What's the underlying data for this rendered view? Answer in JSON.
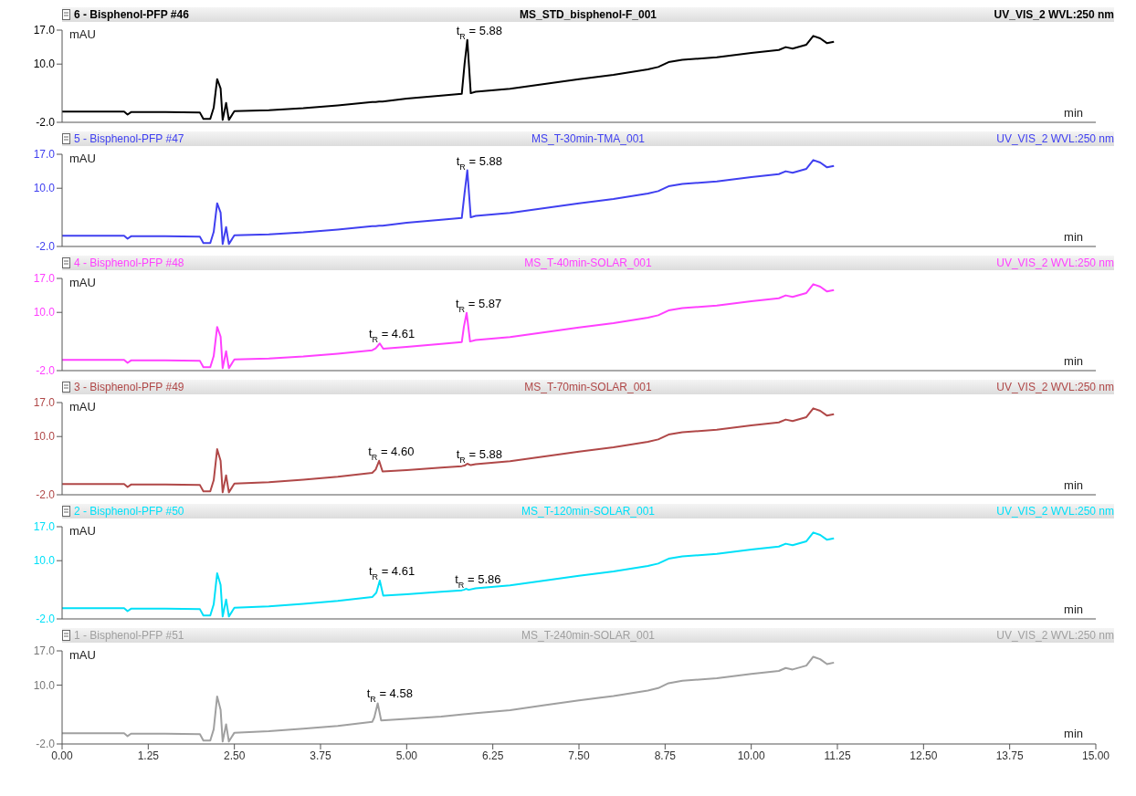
{
  "chart_data": [
    {
      "type": "line",
      "title": "6 - Bisphenol-PFP #46",
      "subtitle": "MS_STD_bisphenol-F_001",
      "annotations": [
        "UV_VIS_2 WVL:250 nm",
        {
          "text": "t$_{R}$ = 5.88",
          "x": 5.88,
          "y": 15.0
        }
      ],
      "xlabel": "min",
      "ylabel": "mAU",
      "xlim": [
        0,
        15
      ],
      "ylim": [
        -2,
        17
      ],
      "yticks": [
        {
          "value": -2,
          "label": "-2.0"
        },
        {
          "value": 10,
          "label": "10.0"
        },
        {
          "value": 17,
          "label": "17.0"
        }
      ],
      "tick_labels": "y",
      "x": [
        0,
        0.9,
        0.95,
        1.0,
        1.5,
        2.0,
        2.05,
        2.15,
        2.2,
        2.25,
        2.3,
        2.33,
        2.38,
        2.42,
        2.5,
        3.0,
        3.5,
        4.0,
        4.5,
        4.55,
        4.6,
        4.65,
        5.0,
        5.5,
        5.8,
        5.84,
        5.88,
        5.93,
        6.0,
        6.5,
        7.0,
        7.5,
        8.0,
        8.5,
        8.65,
        8.8,
        9.0,
        9.5,
        10.0,
        10.4,
        10.5,
        10.6,
        10.8,
        10.9,
        11.0,
        11.1,
        11.2
      ],
      "series": [
        {
          "color": "#000000",
          "values": [
            0.2,
            0.2,
            -0.4,
            0.1,
            0.1,
            0.0,
            -1.3,
            -1.3,
            1.0,
            6.9,
            5.0,
            -1.5,
            2.0,
            -1.5,
            0.3,
            0.5,
            0.9,
            1.5,
            2.2,
            2.2,
            2.3,
            2.3,
            2.9,
            3.5,
            3.9,
            10.0,
            15.0,
            4.0,
            4.3,
            4.9,
            5.9,
            6.9,
            7.8,
            8.9,
            9.4,
            10.4,
            10.9,
            11.4,
            12.3,
            12.9,
            13.5,
            13.2,
            14.0,
            15.8,
            15.3,
            14.3,
            14.6
          ]
        }
      ]
    },
    {
      "type": "line",
      "title": "5 - Bisphenol-PFP #47",
      "subtitle": "MS_T-30min-TMA_001",
      "annotations": [
        "UV_VIS_2 WVL:250 nm",
        {
          "text": "t$_{R}$ = 5.88",
          "x": 5.88,
          "y": 13.7
        }
      ],
      "xlabel": "min",
      "ylabel": "mAU",
      "xlim": [
        0,
        15
      ],
      "ylim": [
        -2,
        17
      ],
      "yticks": [
        {
          "value": -2,
          "label": "-2.0"
        },
        {
          "value": 10,
          "label": "10.0"
        },
        {
          "value": 17,
          "label": "17.0"
        }
      ],
      "tick_labels": "y",
      "x": [
        0,
        0.9,
        0.95,
        1.0,
        1.5,
        2.0,
        2.05,
        2.15,
        2.2,
        2.25,
        2.3,
        2.33,
        2.38,
        2.42,
        2.5,
        3.0,
        3.5,
        4.0,
        4.5,
        4.55,
        4.6,
        4.65,
        5.0,
        5.5,
        5.8,
        5.84,
        5.88,
        5.93,
        6.0,
        6.5,
        7.0,
        7.5,
        8.0,
        8.5,
        8.65,
        8.8,
        9.0,
        9.5,
        10.0,
        10.4,
        10.5,
        10.6,
        10.8,
        10.9,
        11.0,
        11.1,
        11.2
      ],
      "series": [
        {
          "color": "#4040f0",
          "values": [
            0.2,
            0.2,
            -0.4,
            0.1,
            0.1,
            0.0,
            -1.3,
            -1.3,
            1.0,
            6.9,
            5.0,
            -1.5,
            2.0,
            -1.5,
            0.3,
            0.5,
            0.9,
            1.5,
            2.2,
            2.2,
            2.3,
            2.3,
            2.9,
            3.5,
            3.9,
            9.0,
            13.7,
            4.0,
            4.3,
            4.9,
            5.9,
            6.9,
            7.8,
            8.9,
            9.4,
            10.4,
            10.9,
            11.4,
            12.3,
            12.9,
            13.5,
            13.2,
            14.0,
            15.8,
            15.3,
            14.3,
            14.6
          ]
        }
      ]
    },
    {
      "type": "line",
      "title": "4 - Bisphenol-PFP #48",
      "subtitle": "MS_T-40min-SOLAR_001",
      "annotations": [
        "UV_VIS_2 WVL:250 nm",
        {
          "text": "t$_{R}$ = 4.61",
          "x": 4.61,
          "y": 3.6
        },
        {
          "text": "t$_{R}$ = 5.87",
          "x": 5.87,
          "y": 9.9
        }
      ],
      "xlabel": "min",
      "ylabel": "mAU",
      "xlim": [
        0,
        15
      ],
      "ylim": [
        -2,
        17
      ],
      "yticks": [
        {
          "value": -2,
          "label": "-2.0"
        },
        {
          "value": 10,
          "label": "10.0"
        },
        {
          "value": 17,
          "label": "17.0"
        }
      ],
      "tick_labels": "y",
      "x": [
        0,
        0.9,
        0.95,
        1.0,
        1.5,
        2.0,
        2.05,
        2.15,
        2.2,
        2.25,
        2.3,
        2.33,
        2.38,
        2.42,
        2.5,
        3.0,
        3.5,
        4.0,
        4.5,
        4.55,
        4.61,
        4.66,
        5.0,
        5.5,
        5.8,
        5.83,
        5.87,
        5.92,
        6.0,
        6.5,
        7.0,
        7.5,
        8.0,
        8.5,
        8.65,
        8.8,
        9.0,
        9.5,
        10.0,
        10.4,
        10.5,
        10.6,
        10.8,
        10.9,
        11.0,
        11.1,
        11.2
      ],
      "series": [
        {
          "color": "#ff40ff",
          "values": [
            0.2,
            0.2,
            -0.4,
            0.1,
            0.1,
            0.0,
            -1.3,
            -1.3,
            1.0,
            7.0,
            5.0,
            -1.5,
            2.0,
            -1.5,
            0.3,
            0.5,
            0.9,
            1.5,
            2.2,
            2.6,
            3.6,
            2.5,
            2.9,
            3.5,
            3.9,
            7.0,
            9.9,
            4.0,
            4.3,
            4.9,
            5.9,
            6.9,
            7.8,
            8.9,
            9.4,
            10.4,
            10.9,
            11.4,
            12.3,
            12.9,
            13.5,
            13.2,
            14.0,
            15.8,
            15.3,
            14.3,
            14.6
          ]
        }
      ]
    },
    {
      "type": "line",
      "title": "3 - Bisphenol-PFP #49",
      "subtitle": "MS_T-70min-SOLAR_001",
      "annotations": [
        "UV_VIS_2 WVL:250 nm",
        {
          "text": "t$_{R}$ = 4.60",
          "x": 4.6,
          "y": 5.0
        },
        {
          "text": "t$_{R}$ = 5.88",
          "x": 5.88,
          "y": 4.4
        }
      ],
      "xlabel": "min",
      "ylabel": "mAU",
      "xlim": [
        0,
        15
      ],
      "ylim": [
        -2,
        17
      ],
      "yticks": [
        {
          "value": -2,
          "label": "-2.0"
        },
        {
          "value": 10,
          "label": "10.0"
        },
        {
          "value": 17,
          "label": "17.0"
        }
      ],
      "tick_labels": "y",
      "x": [
        0,
        0.9,
        0.95,
        1.0,
        1.5,
        2.0,
        2.05,
        2.15,
        2.2,
        2.25,
        2.3,
        2.33,
        2.38,
        2.42,
        2.5,
        3.0,
        3.5,
        4.0,
        4.5,
        4.55,
        4.6,
        4.65,
        5.0,
        5.5,
        5.8,
        5.84,
        5.88,
        5.93,
        6.0,
        6.5,
        7.0,
        7.5,
        8.0,
        8.5,
        8.65,
        8.8,
        9.0,
        9.5,
        10.0,
        10.4,
        10.5,
        10.6,
        10.8,
        10.9,
        11.0,
        11.1,
        11.2
      ],
      "series": [
        {
          "color": "#b04848",
          "values": [
            0.2,
            0.2,
            -0.4,
            0.1,
            0.1,
            0.0,
            -1.3,
            -1.3,
            1.0,
            7.4,
            5.0,
            -1.5,
            2.0,
            -1.5,
            0.3,
            0.6,
            1.1,
            1.7,
            2.5,
            3.2,
            5.0,
            2.8,
            3.1,
            3.6,
            3.9,
            4.0,
            4.4,
            4.1,
            4.3,
            4.9,
            5.9,
            6.9,
            7.8,
            8.9,
            9.4,
            10.4,
            10.9,
            11.4,
            12.3,
            12.9,
            13.5,
            13.2,
            14.0,
            15.8,
            15.3,
            14.3,
            14.6
          ]
        }
      ]
    },
    {
      "type": "line",
      "title": "2 - Bisphenol-PFP #50",
      "subtitle": "MS_T-120min-SOLAR_001",
      "annotations": [
        "UV_VIS_2 WVL:250 nm",
        {
          "text": "t$_{R}$ = 4.61",
          "x": 4.61,
          "y": 5.9
        },
        {
          "text": "t$_{R}$ = 5.86",
          "x": 5.86,
          "y": 4.2
        }
      ],
      "xlabel": "min",
      "ylabel": "mAU",
      "xlim": [
        0,
        15
      ],
      "ylim": [
        -2,
        17
      ],
      "yticks": [
        {
          "value": -2,
          "label": "-2.0"
        },
        {
          "value": 10,
          "label": "10.0"
        },
        {
          "value": 17,
          "label": "17.0"
        }
      ],
      "tick_labels": "y",
      "x": [
        0,
        0.9,
        0.95,
        1.0,
        1.5,
        2.0,
        2.05,
        2.15,
        2.2,
        2.25,
        2.3,
        2.33,
        2.38,
        2.42,
        2.5,
        3.0,
        3.5,
        4.0,
        4.5,
        4.56,
        4.61,
        4.66,
        5.0,
        5.5,
        5.8,
        5.83,
        5.86,
        5.9,
        6.0,
        6.5,
        7.0,
        7.5,
        8.0,
        8.5,
        8.65,
        8.8,
        9.0,
        9.5,
        10.0,
        10.4,
        10.5,
        10.6,
        10.8,
        10.9,
        11.0,
        11.1,
        11.2
      ],
      "series": [
        {
          "color": "#00e0f8",
          "values": [
            0.2,
            0.2,
            -0.4,
            0.1,
            0.1,
            0.0,
            -1.3,
            -1.3,
            1.0,
            7.4,
            5.0,
            -1.5,
            2.0,
            -1.5,
            0.3,
            0.6,
            1.1,
            1.7,
            2.5,
            3.4,
            5.9,
            2.8,
            3.1,
            3.6,
            3.9,
            4.0,
            4.2,
            4.0,
            4.3,
            4.9,
            5.9,
            6.9,
            7.8,
            8.9,
            9.4,
            10.4,
            10.9,
            11.4,
            12.3,
            12.9,
            13.5,
            13.2,
            14.0,
            15.8,
            15.3,
            14.3,
            14.6
          ]
        }
      ]
    },
    {
      "type": "line",
      "title": "1 - Bisphenol-PFP #51",
      "subtitle": "MS_T-240min-SOLAR_001",
      "annotations": [
        "UV_VIS_2 WVL:250 nm",
        {
          "text": "t$_{R}$ = 4.58",
          "x": 4.58,
          "y": 6.3
        }
      ],
      "xlabel": "min",
      "ylabel": "mAU",
      "xlim": [
        0,
        15
      ],
      "ylim": [
        -2,
        17
      ],
      "yticks": [
        {
          "value": -2,
          "label": "-2.0"
        },
        {
          "value": 10,
          "label": "10.0"
        },
        {
          "value": 17,
          "label": "17.0"
        }
      ],
      "xticks": [
        {
          "value": 0,
          "label": "0.00"
        },
        {
          "value": 1.25,
          "label": "1.25"
        },
        {
          "value": 2.5,
          "label": "2.50"
        },
        {
          "value": 3.75,
          "label": "3.75"
        },
        {
          "value": 5,
          "label": "5.00"
        },
        {
          "value": 6.25,
          "label": "6.25"
        },
        {
          "value": 7.5,
          "label": "7.50"
        },
        {
          "value": 8.75,
          "label": "8.75"
        },
        {
          "value": 10,
          "label": "10.00"
        },
        {
          "value": 11.25,
          "label": "11.25"
        },
        {
          "value": 12.5,
          "label": "12.50"
        },
        {
          "value": 13.75,
          "label": "13.75"
        },
        {
          "value": 15,
          "label": "15.00"
        }
      ],
      "x": [
        0,
        0.9,
        0.95,
        1.0,
        1.5,
        2.0,
        2.05,
        2.15,
        2.2,
        2.25,
        2.3,
        2.33,
        2.38,
        2.42,
        2.5,
        3.0,
        3.5,
        4.0,
        4.5,
        4.53,
        4.58,
        4.63,
        5.0,
        5.5,
        6.0,
        6.5,
        7.0,
        7.5,
        8.0,
        8.5,
        8.65,
        8.8,
        9.0,
        9.5,
        10.0,
        10.4,
        10.5,
        10.6,
        10.8,
        10.9,
        11.0,
        11.1,
        11.2
      ],
      "series": [
        {
          "color": "#a0a0a0",
          "values": [
            0.2,
            0.2,
            -0.4,
            0.1,
            0.1,
            0.0,
            -1.3,
            -1.3,
            1.0,
            7.7,
            5.0,
            -1.5,
            2.0,
            -1.5,
            0.3,
            0.6,
            1.1,
            1.7,
            2.5,
            3.4,
            6.3,
            2.8,
            3.1,
            3.6,
            4.3,
            4.9,
            5.9,
            6.9,
            7.8,
            8.9,
            9.4,
            10.4,
            10.9,
            11.4,
            12.3,
            12.9,
            13.5,
            13.2,
            14.0,
            15.8,
            15.3,
            14.3,
            14.6
          ]
        }
      ]
    }
  ]
}
